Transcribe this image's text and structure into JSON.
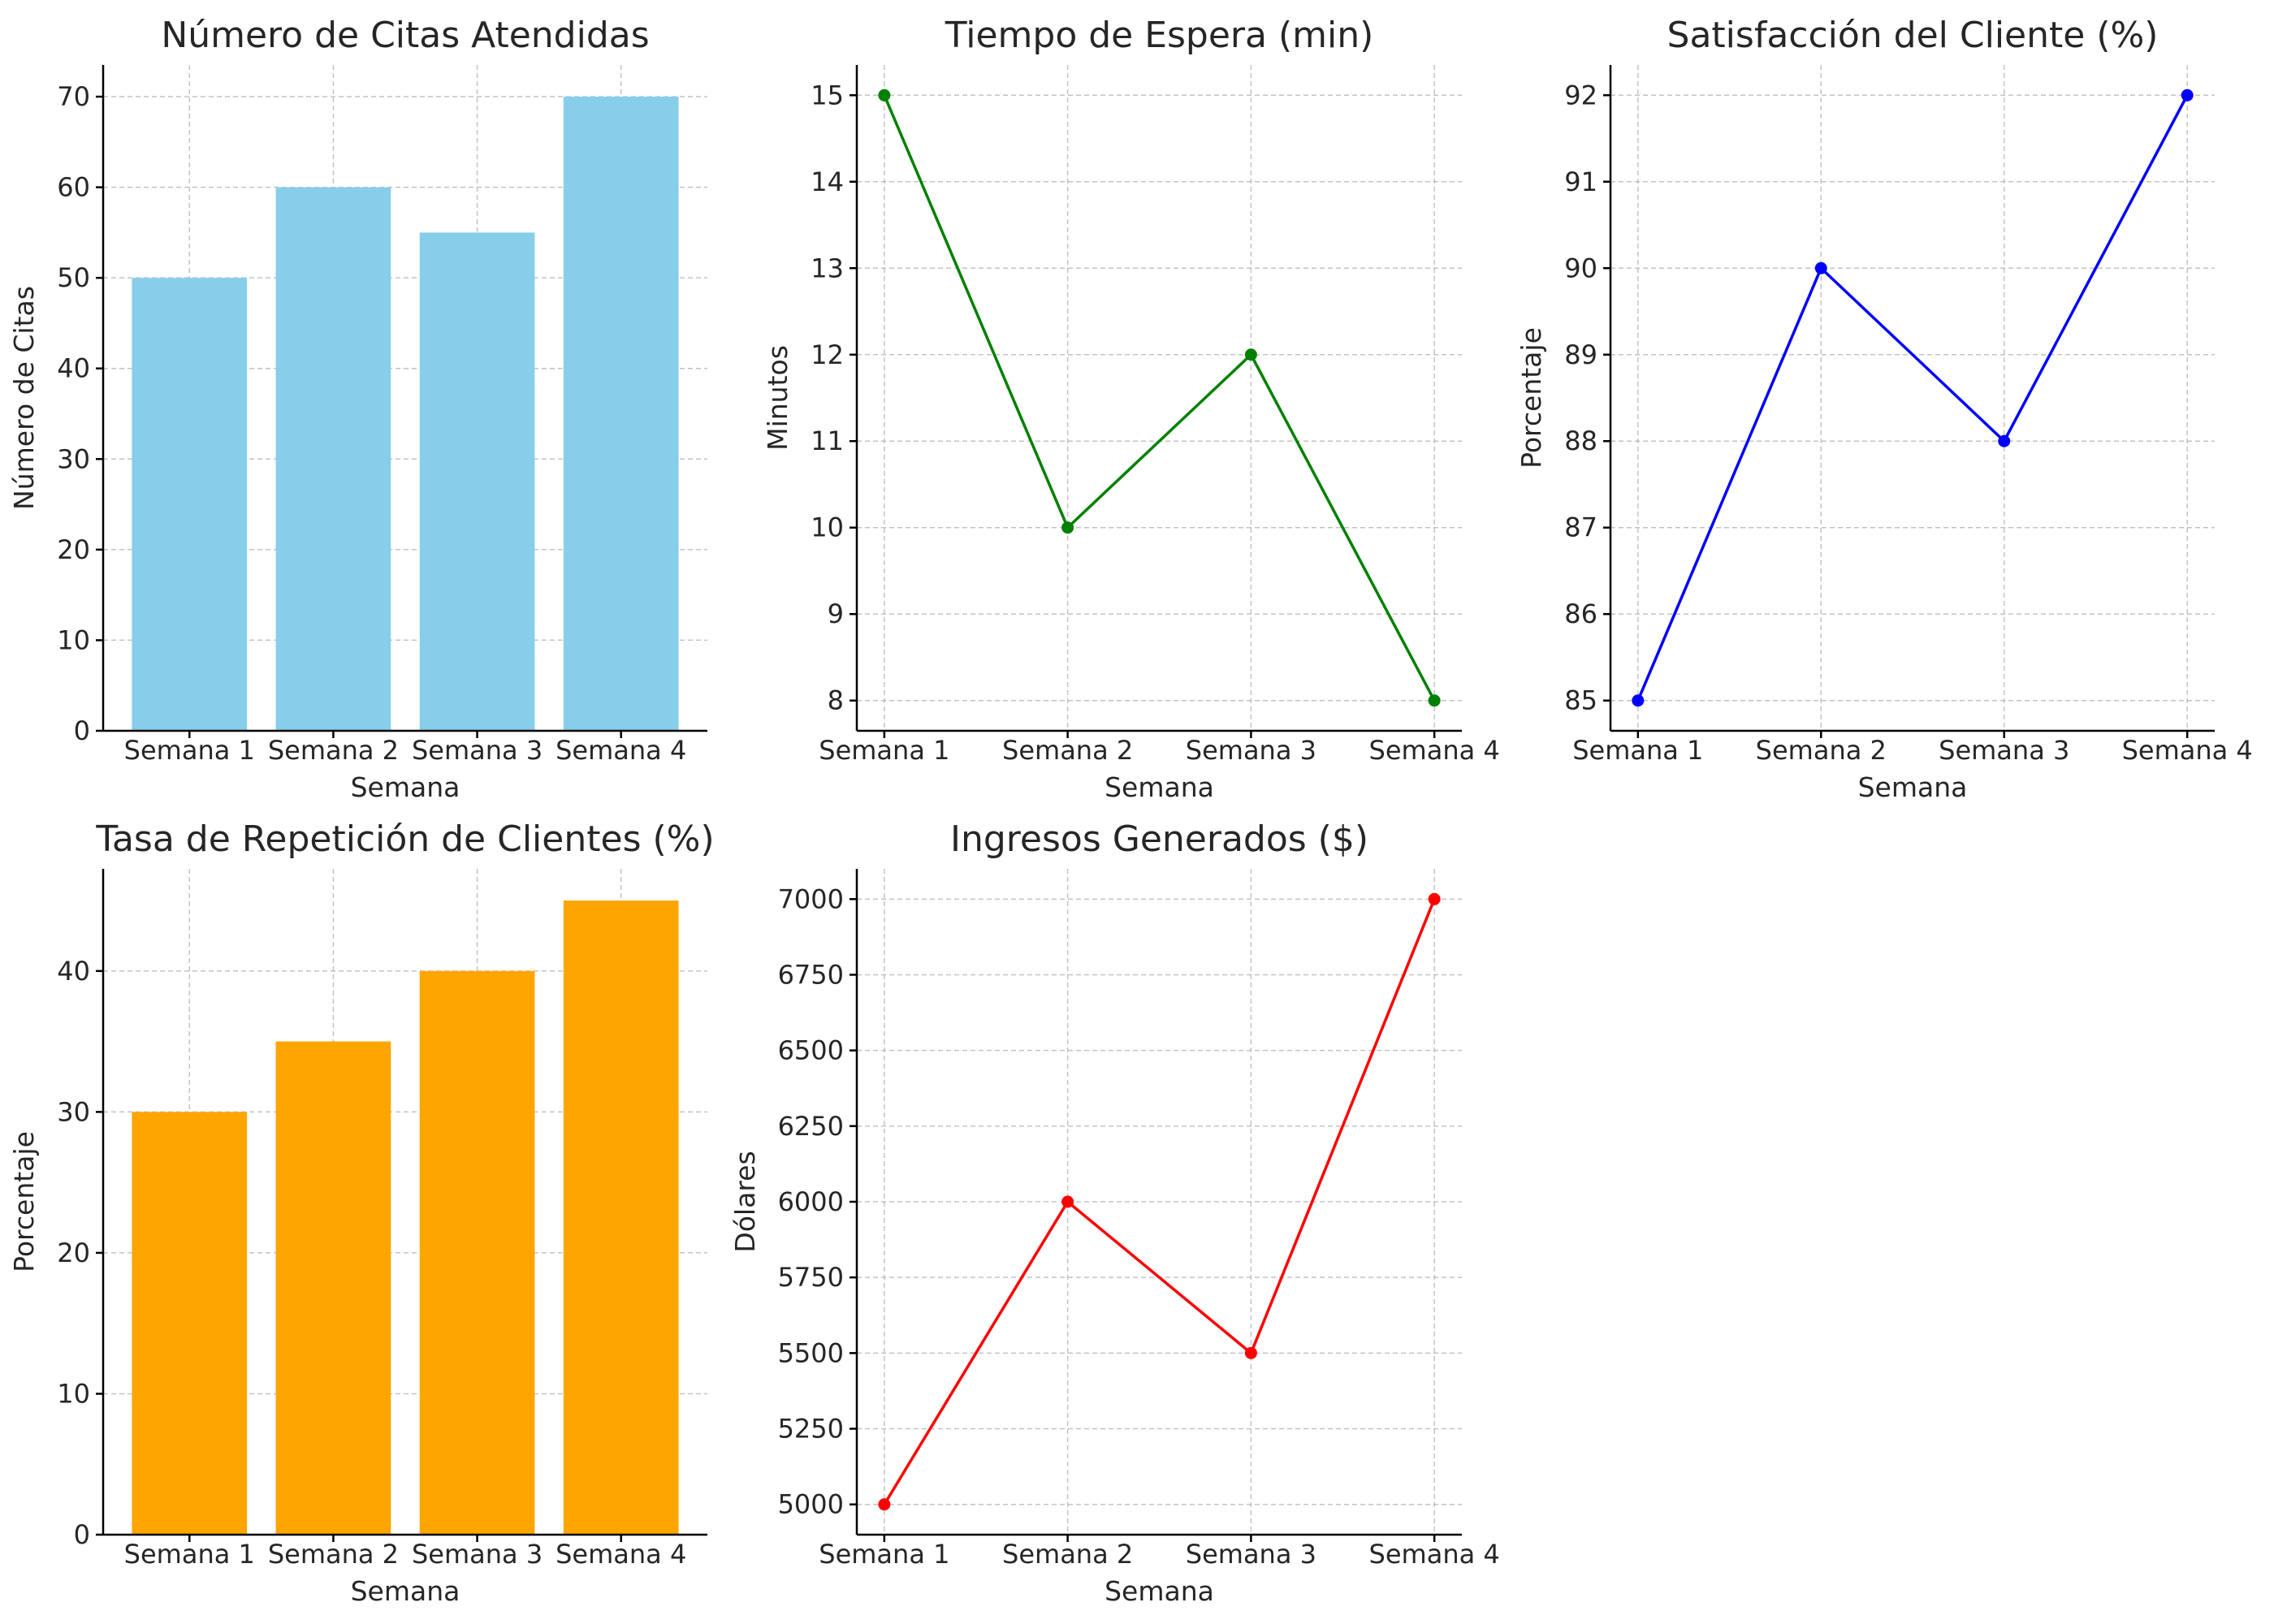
{
  "chart_data": [
    {
      "type": "bar",
      "title": "Número de Citas Atendidas",
      "xlabel": "Semana",
      "ylabel": "Número de Citas",
      "categories": [
        "Semana 1",
        "Semana 2",
        "Semana 3",
        "Semana 4"
      ],
      "values": [
        50,
        60,
        55,
        70
      ],
      "ylim": [
        0,
        73.5
      ],
      "yticks": [
        0,
        10,
        20,
        30,
        40,
        50,
        60,
        70
      ],
      "color": "#87ceeb",
      "grid": true
    },
    {
      "type": "line",
      "title": "Tiempo de Espera (min)",
      "xlabel": "Semana",
      "ylabel": "Minutos",
      "categories": [
        "Semana 1",
        "Semana 2",
        "Semana 3",
        "Semana 4"
      ],
      "values": [
        15,
        10,
        12,
        8
      ],
      "ylim": [
        7.65,
        15.35
      ],
      "yticks": [
        8,
        9,
        10,
        11,
        12,
        13,
        14,
        15
      ],
      "color": "#008000",
      "marker": "circle",
      "grid": true
    },
    {
      "type": "line",
      "title": "Satisfacción del Cliente (%)",
      "xlabel": "Semana",
      "ylabel": "Porcentaje",
      "categories": [
        "Semana 1",
        "Semana 2",
        "Semana 3",
        "Semana 4"
      ],
      "values": [
        85,
        90,
        88,
        92
      ],
      "ylim": [
        84.65,
        92.35
      ],
      "yticks": [
        85,
        86,
        87,
        88,
        89,
        90,
        91,
        92
      ],
      "color": "#0000ff",
      "marker": "circle",
      "grid": true
    },
    {
      "type": "bar",
      "title": "Tasa de Repetición de Clientes (%)",
      "xlabel": "Semana",
      "ylabel": "Porcentaje",
      "categories": [
        "Semana 1",
        "Semana 2",
        "Semana 3",
        "Semana 4"
      ],
      "values": [
        30,
        35,
        40,
        45
      ],
      "ylim": [
        0,
        47.25
      ],
      "yticks": [
        0,
        10,
        20,
        30,
        40
      ],
      "color": "#ffa500",
      "grid": true
    },
    {
      "type": "line",
      "title": "Ingresos Generados ($)",
      "xlabel": "Semana",
      "ylabel": "Dólares",
      "categories": [
        "Semana 1",
        "Semana 2",
        "Semana 3",
        "Semana 4"
      ],
      "values": [
        5000,
        6000,
        5500,
        7000
      ],
      "ylim": [
        4900,
        7100
      ],
      "yticks": [
        5000,
        5250,
        5500,
        5750,
        6000,
        6250,
        6500,
        6750,
        7000
      ],
      "color": "#ff0000",
      "marker": "circle",
      "grid": true
    }
  ]
}
